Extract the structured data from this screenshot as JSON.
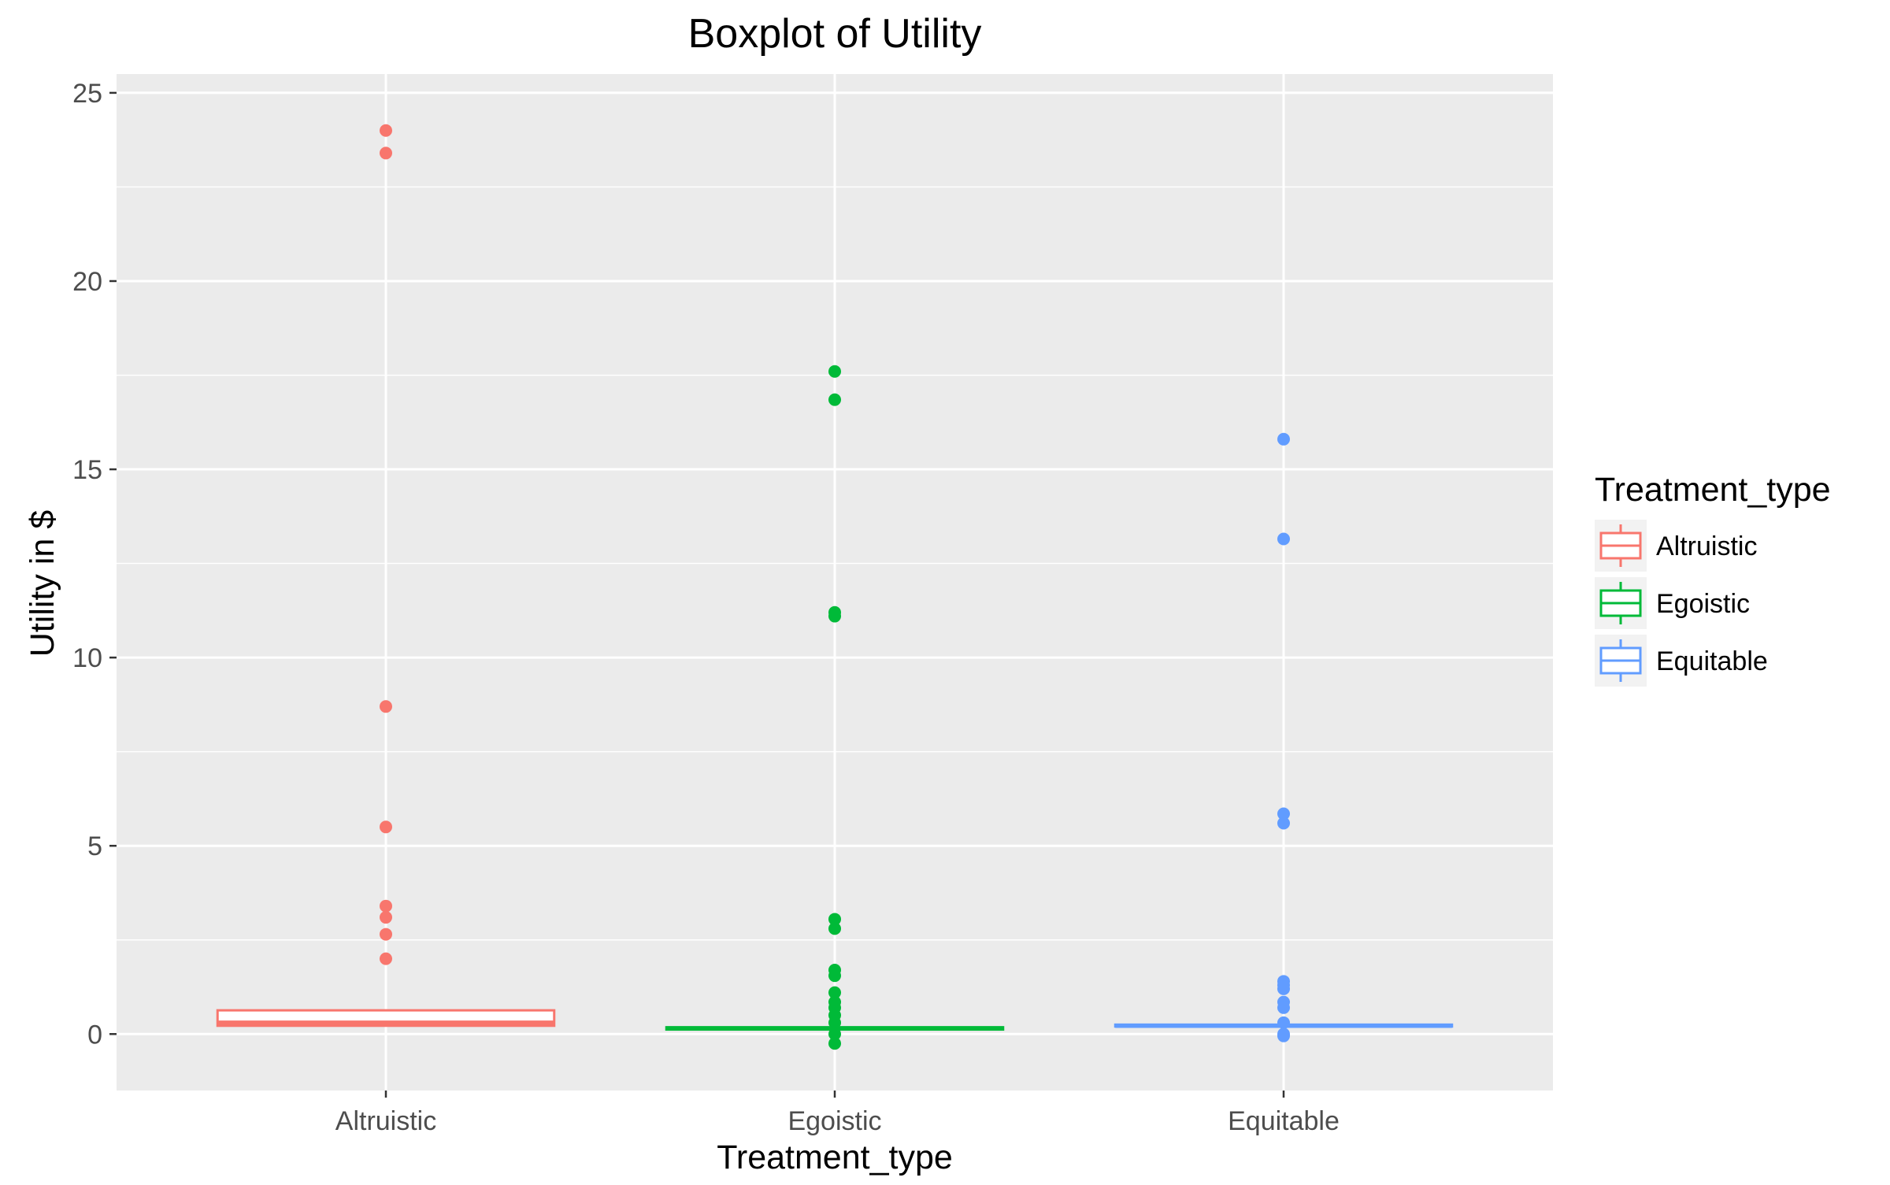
{
  "chart_data": {
    "type": "boxplot",
    "title": "Boxplot of Utility",
    "xlabel": "Treatment_type",
    "ylabel": "Utility in $",
    "ylim": [
      -1.5,
      25.5
    ],
    "yticks": [
      0,
      5,
      10,
      15,
      20,
      25
    ],
    "grid": true,
    "legend": {
      "title": "Treatment_type",
      "position": "right"
    },
    "colors": {
      "Altruistic": "#F8766D",
      "Egoistic": "#00BA38",
      "Equitable": "#619CFF"
    },
    "categories": [
      "Altruistic",
      "Egoistic",
      "Equitable"
    ],
    "series": [
      {
        "name": "Altruistic",
        "q1": 0.22,
        "median": 0.3,
        "q3": 0.63,
        "whisker_low": 0.22,
        "whisker_high": 0.63,
        "outliers": [
          24.0,
          23.4,
          8.7,
          5.5,
          3.4,
          3.1,
          2.65,
          2.0
        ]
      },
      {
        "name": "Egoistic",
        "q1": 0.12,
        "median": 0.15,
        "q3": 0.18,
        "whisker_low": 0.12,
        "whisker_high": 0.18,
        "outliers": [
          17.6,
          16.85,
          11.2,
          11.1,
          3.05,
          2.8,
          1.7,
          1.55,
          1.1,
          0.85,
          0.7,
          0.5,
          0.3,
          0.0,
          -0.25
        ]
      },
      {
        "name": "Equitable",
        "q1": 0.2,
        "median": 0.22,
        "q3": 0.25,
        "whisker_low": 0.2,
        "whisker_high": 0.25,
        "outliers": [
          15.8,
          13.15,
          5.85,
          5.6,
          1.4,
          1.3,
          1.2,
          0.85,
          0.7,
          0.3,
          0.0,
          -0.05
        ]
      }
    ]
  }
}
